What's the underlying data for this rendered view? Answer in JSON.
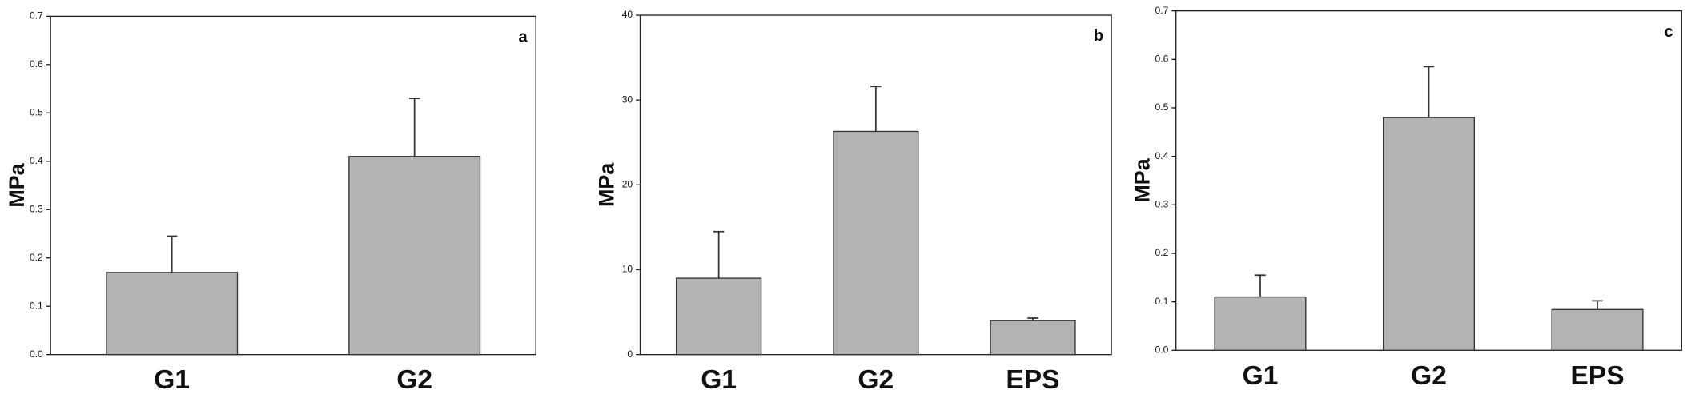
{
  "chart_data": [
    {
      "type": "bar",
      "panel_label": "a",
      "ylabel": "MPa",
      "categories": [
        "G1",
        "G2"
      ],
      "values": [
        0.17,
        0.41
      ],
      "errors": [
        0.075,
        0.12
      ],
      "color": "#b3b3b3",
      "ylim": [
        0,
        0.7
      ],
      "yticks": [
        {
          "value": 0,
          "label": "0.0"
        },
        0.1,
        0.2,
        0.3,
        0.4,
        0.5,
        0.6,
        0.7
      ]
    },
    {
      "type": "bar",
      "panel_label": "b",
      "ylabel": "MPa",
      "categories": [
        "G1",
        "G2",
        "EPS"
      ],
      "values": [
        9,
        26.3,
        4
      ],
      "errors": [
        5.5,
        5.3,
        0.3
      ],
      "color": "#b3b3b3",
      "ylim": [
        0,
        40
      ],
      "yticks": [
        0,
        10,
        20,
        30,
        40
      ]
    },
    {
      "type": "bar",
      "panel_label": "c",
      "ylabel": "MPa",
      "categories": [
        "G1",
        "G2",
        "EPS"
      ],
      "values": [
        0.11,
        0.48,
        0.084
      ],
      "errors": [
        0.045,
        0.105,
        0.018
      ],
      "color": "#b3b3b3",
      "ylim": [
        0,
        0.7
      ],
      "yticks": [
        {
          "value": 0,
          "label": "0.0"
        },
        0.1,
        0.2,
        0.3,
        0.4,
        0.5,
        0.6,
        0.7
      ]
    }
  ]
}
